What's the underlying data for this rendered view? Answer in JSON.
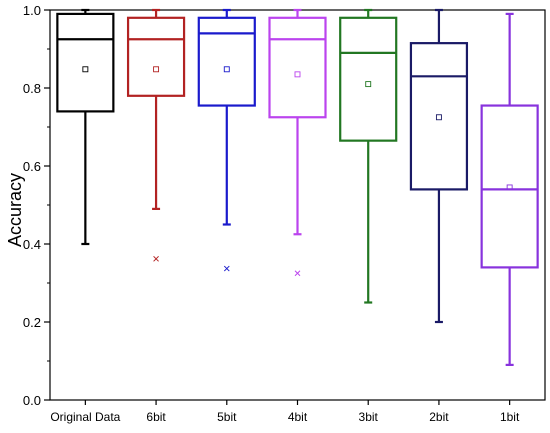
{
  "chart_data": {
    "type": "box",
    "title": "",
    "xlabel": "",
    "ylabel": "Accuracy",
    "ylim": [
      0,
      1
    ],
    "yticks": [
      "0.0",
      "0.2",
      "0.4",
      "0.6",
      "0.8",
      "1.0"
    ],
    "grid": false,
    "legend": "none",
    "categories": [
      "Original Data",
      "6bit",
      "5bit",
      "4bit",
      "3bit",
      "2bit",
      "1bit"
    ],
    "boxes": [
      {
        "name": "Original Data",
        "color": "#000000",
        "min": 0.4,
        "q1": 0.74,
        "median": 0.925,
        "q3": 0.99,
        "max": 1.0,
        "mean": 0.848,
        "outliers": []
      },
      {
        "name": "6bit",
        "color": "#b22222",
        "min": 0.49,
        "q1": 0.78,
        "median": 0.925,
        "q3": 0.98,
        "max": 1.0,
        "mean": 0.848,
        "outliers": [
          0.362
        ]
      },
      {
        "name": "5bit",
        "color": "#1a1acc",
        "min": 0.45,
        "q1": 0.755,
        "median": 0.94,
        "q3": 0.98,
        "max": 1.0,
        "mean": 0.848,
        "outliers": [
          0.337
        ]
      },
      {
        "name": "4bit",
        "color": "#bb44ee",
        "min": 0.425,
        "q1": 0.725,
        "median": 0.925,
        "q3": 0.98,
        "max": 1.0,
        "mean": 0.835,
        "outliers": [
          0.325
        ]
      },
      {
        "name": "3bit",
        "color": "#227722",
        "min": 0.25,
        "q1": 0.665,
        "median": 0.89,
        "q3": 0.98,
        "max": 1.0,
        "mean": 0.81,
        "outliers": []
      },
      {
        "name": "2bit",
        "color": "#1a1a66",
        "min": 0.2,
        "q1": 0.54,
        "median": 0.83,
        "q3": 0.915,
        "max": 1.0,
        "mean": 0.725,
        "outliers": []
      },
      {
        "name": "1bit",
        "color": "#8833dd",
        "min": 0.09,
        "q1": 0.34,
        "median": 0.54,
        "q3": 0.755,
        "max": 0.99,
        "mean": 0.545,
        "outliers": []
      }
    ]
  }
}
